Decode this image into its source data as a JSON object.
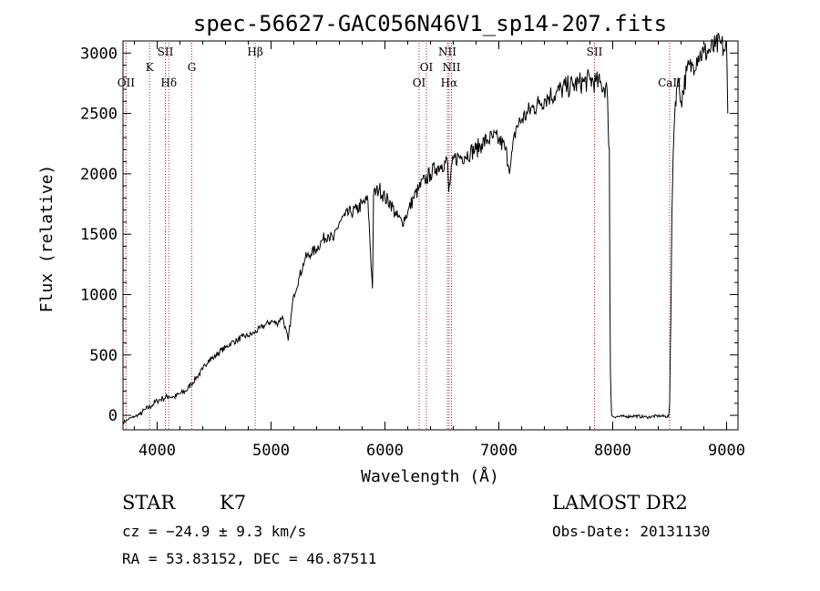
{
  "chart_data": {
    "type": "line",
    "title": "spec-56627-GAC056N46V1_sp14-207.fits",
    "xlabel": "Wavelength (Å)",
    "ylabel": "Flux (relative)",
    "xlim": [
      3700,
      9100
    ],
    "ylim": [
      -120,
      3100
    ],
    "xticks": [
      4000,
      5000,
      6000,
      7000,
      8000,
      9000
    ],
    "yticks": [
      0,
      500,
      1000,
      1500,
      2000,
      2500,
      3000
    ],
    "grid": false,
    "series": [
      {
        "x": [
          3700,
          3750,
          3800,
          3850,
          3900,
          3950,
          4000,
          4050,
          4100,
          4150,
          4200,
          4250,
          4300,
          4350,
          4400,
          4450,
          4500,
          4550,
          4600,
          4650,
          4700,
          4750,
          4800,
          4850,
          4900,
          4950,
          5000,
          5050,
          5100,
          5150,
          5200,
          5250,
          5300,
          5350,
          5400,
          5450,
          5500,
          5550,
          5600,
          5650,
          5700,
          5750,
          5800,
          5850,
          5890,
          5900,
          5950,
          6000,
          6050,
          6100,
          6150,
          6200,
          6250,
          6300,
          6350,
          6400,
          6450,
          6500,
          6550,
          6560,
          6600,
          6650,
          6700,
          6750,
          6800,
          6850,
          6900,
          6950,
          7000,
          7050,
          7100,
          7150,
          7200,
          7250,
          7300,
          7350,
          7400,
          7450,
          7500,
          7550,
          7600,
          7650,
          7700,
          7750,
          7800,
          7850,
          7900,
          7950,
          7960,
          7970,
          7975,
          7980,
          7990,
          8000,
          8100,
          8200,
          8300,
          8400,
          8490,
          8500,
          8510,
          8520,
          8530,
          8540,
          8550,
          8560,
          8580,
          8600,
          8650,
          8700,
          8750,
          8800,
          8850,
          8900,
          8950,
          8980,
          9000,
          9010
        ],
        "values": [
          -60,
          -30,
          -10,
          10,
          50,
          80,
          120,
          140,
          160,
          150,
          180,
          200,
          260,
          320,
          380,
          460,
          480,
          530,
          560,
          600,
          620,
          650,
          660,
          680,
          720,
          750,
          780,
          760,
          820,
          620,
          1000,
          1150,
          1300,
          1340,
          1380,
          1450,
          1500,
          1450,
          1600,
          1650,
          1680,
          1700,
          1750,
          1780,
          1050,
          1820,
          1880,
          1800,
          1760,
          1650,
          1600,
          1680,
          1800,
          1880,
          1950,
          2000,
          2050,
          2080,
          2100,
          1850,
          2120,
          2140,
          2150,
          2180,
          2200,
          2250,
          2280,
          2300,
          2280,
          2220,
          2050,
          2380,
          2450,
          2500,
          2550,
          2580,
          2620,
          2650,
          2660,
          2700,
          2720,
          2730,
          2750,
          2760,
          2780,
          2760,
          2740,
          2700,
          2400,
          2200,
          1000,
          350,
          0,
          -10,
          -10,
          -5,
          -15,
          -5,
          -10,
          100,
          800,
          1700,
          2150,
          2400,
          2600,
          2700,
          2750,
          2600,
          2850,
          2900,
          2980,
          3000,
          3020,
          3050,
          3080,
          3020,
          3050,
          2500
        ]
      }
    ],
    "line_marks": [
      {
        "label": "OII",
        "x": 3727,
        "row": 3
      },
      {
        "label": "K",
        "x": 3934,
        "row": 1
      },
      {
        "label": "SII",
        "x": 4072,
        "row": 0
      },
      {
        "label": "Hδ",
        "x": 4102,
        "row": 2
      },
      {
        "label": "G",
        "x": 4304,
        "row": 1
      },
      {
        "label": "Hβ",
        "x": 4861,
        "row": 0
      },
      {
        "label": "OI",
        "x": 6300,
        "row": 2
      },
      {
        "label": "OI",
        "x": 6364,
        "row": 1
      },
      {
        "label": "NII",
        "x": 6548,
        "row": 0
      },
      {
        "label": "Hα",
        "x": 6563,
        "row": 2
      },
      {
        "label": "NII",
        "x": 6584,
        "row": 1
      },
      {
        "label": "SII",
        "x": 7840,
        "row": 0
      },
      {
        "label": "CaII",
        "x": 8500,
        "row": 2
      }
    ]
  },
  "info": {
    "class_type": "STAR",
    "subclass": "K7",
    "survey": "LAMOST DR2",
    "cz": "cz = −24.9 ± 9.3 km/s",
    "obs_date": "Obs-Date: 20131130",
    "radec": "RA =  53.83152, DEC =  46.87511"
  },
  "colors": {
    "spectrum": "#000000",
    "line_marker": "#b22222"
  }
}
